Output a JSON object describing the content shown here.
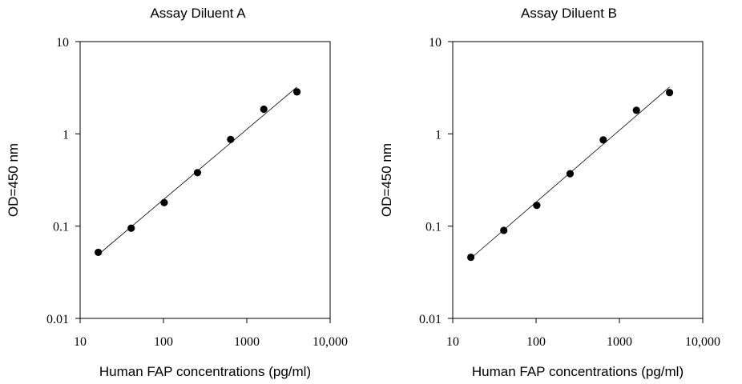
{
  "chart_data": [
    {
      "type": "scatter",
      "title": "Assay Diluent A",
      "xlabel": "Human FAP concentrations (pg/ml)",
      "ylabel": "OD=450 nm",
      "xscale": "log",
      "yscale": "log",
      "xlim": [
        10,
        10000
      ],
      "ylim": [
        0.01,
        10
      ],
      "xticks": [
        "10",
        "100",
        "1000",
        "10,000"
      ],
      "yticks": [
        "0.01",
        "0.1",
        "1",
        "10"
      ],
      "grid": false,
      "fit_line": true,
      "series": [
        {
          "x": [
            16.5,
            41,
            102,
            256,
            640,
            1600,
            4000
          ],
          "y": [
            0.052,
            0.095,
            0.18,
            0.38,
            0.87,
            1.85,
            2.85
          ]
        }
      ]
    },
    {
      "type": "scatter",
      "title": "Assay Diluent B",
      "xlabel": "Human FAP concentrations (pg/ml)",
      "ylabel": "OD=450 nm",
      "xscale": "log",
      "yscale": "log",
      "xlim": [
        10,
        10000
      ],
      "ylim": [
        0.01,
        10
      ],
      "xticks": [
        "10",
        "100",
        "1000",
        "10,000"
      ],
      "yticks": [
        "0.01",
        "0.1",
        "1",
        "10"
      ],
      "grid": false,
      "fit_line": true,
      "series": [
        {
          "x": [
            16.5,
            41,
            102,
            256,
            640,
            1600,
            4000
          ],
          "y": [
            0.046,
            0.09,
            0.168,
            0.37,
            0.86,
            1.8,
            2.8
          ]
        }
      ]
    }
  ]
}
